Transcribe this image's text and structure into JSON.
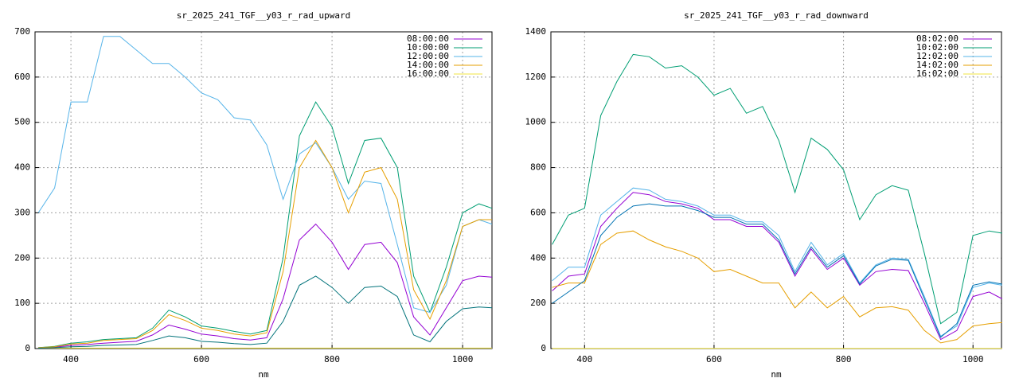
{
  "chart_data": [
    {
      "type": "line",
      "title": "sr_2025_241_TGF__y03_r_rad_upward",
      "xlabel": "nm",
      "x": [
        350,
        375,
        400,
        425,
        450,
        475,
        500,
        525,
        550,
        575,
        600,
        625,
        650,
        675,
        700,
        725,
        750,
        775,
        800,
        825,
        850,
        875,
        900,
        925,
        950,
        975,
        1000,
        1025,
        1045
      ],
      "xlim": [
        345,
        1045
      ],
      "ylim": [
        0,
        700
      ],
      "xticks": [
        400,
        600,
        800,
        1000
      ],
      "yticks": [
        0,
        100,
        200,
        300,
        400,
        500,
        600,
        700
      ],
      "grid": true,
      "legend": "top-right",
      "series": [
        {
          "name": "08:00:00",
          "color": "#9400d3",
          "values": [
            2,
            3,
            7,
            9,
            12,
            14,
            16,
            30,
            52,
            43,
            32,
            28,
            22,
            19,
            24,
            110,
            240,
            275,
            235,
            175,
            230,
            235,
            190,
            70,
            30,
            90,
            150,
            160,
            158
          ]
        },
        {
          "name": "10:00:00",
          "color": "#009e73",
          "values": [
            2,
            5,
            12,
            15,
            20,
            22,
            24,
            45,
            85,
            70,
            50,
            45,
            38,
            32,
            40,
            200,
            470,
            545,
            490,
            365,
            460,
            465,
            400,
            160,
            80,
            180,
            300,
            320,
            310
          ]
        },
        {
          "name": "12:00:00",
          "color": "#56b4e9",
          "values": [
            300,
            355,
            545,
            545,
            690,
            690,
            660,
            630,
            630,
            600,
            565,
            550,
            510,
            505,
            450,
            330,
            430,
            455,
            400,
            330,
            370,
            365,
            230,
            90,
            80,
            140,
            270,
            285,
            275
          ]
        },
        {
          "name": "14:00:00",
          "color": "#e69f00",
          "values": [
            2,
            4,
            10,
            12,
            18,
            20,
            22,
            40,
            75,
            62,
            45,
            40,
            32,
            28,
            35,
            170,
            400,
            460,
            400,
            300,
            390,
            400,
            330,
            130,
            65,
            150,
            270,
            285,
            285
          ]
        },
        {
          "name": "16:00:00",
          "color": "#f0e442",
          "values": [
            1,
            1,
            1,
            1,
            1,
            1,
            1,
            1,
            1,
            1,
            1,
            1,
            1,
            1,
            1,
            1,
            1,
            1,
            1,
            1,
            1,
            1,
            1,
            1,
            1,
            1,
            1,
            1,
            1
          ]
        },
        {
          "color": "#00727a",
          "values": [
            1,
            2,
            4,
            5,
            7,
            8,
            9,
            18,
            28,
            24,
            16,
            14,
            11,
            9,
            12,
            60,
            140,
            160,
            135,
            100,
            135,
            138,
            115,
            30,
            15,
            60,
            88,
            92,
            90
          ]
        }
      ]
    },
    {
      "type": "line",
      "title": "sr_2025_241_TGF__y03_r_rad_downward",
      "xlabel": "nm",
      "x": [
        350,
        375,
        400,
        425,
        450,
        475,
        500,
        525,
        550,
        575,
        600,
        625,
        650,
        675,
        700,
        725,
        750,
        775,
        800,
        825,
        850,
        875,
        900,
        925,
        950,
        975,
        1000,
        1025,
        1045
      ],
      "xlim": [
        348,
        1044
      ],
      "ylim": [
        0,
        1400
      ],
      "xticks": [
        400,
        600,
        800,
        1000
      ],
      "yticks": [
        0,
        200,
        400,
        600,
        800,
        1000,
        1200,
        1400
      ],
      "grid": true,
      "legend": "top-right",
      "series": [
        {
          "name": "08:02:00",
          "color": "#9400d3",
          "values": [
            255,
            320,
            330,
            540,
            620,
            690,
            680,
            650,
            640,
            620,
            570,
            570,
            540,
            540,
            470,
            320,
            440,
            350,
            400,
            280,
            340,
            350,
            345,
            200,
            40,
            80,
            230,
            250,
            220
          ]
        },
        {
          "name": "10:02:00",
          "color": "#009e73",
          "values": [
            460,
            590,
            620,
            1030,
            1180,
            1300,
            1290,
            1240,
            1250,
            1200,
            1120,
            1150,
            1040,
            1070,
            920,
            690,
            930,
            880,
            790,
            570,
            680,
            720,
            700,
            420,
            110,
            160,
            500,
            520,
            510
          ]
        },
        {
          "name": "12:02:00",
          "color": "#56b4e9",
          "values": [
            300,
            360,
            360,
            590,
            650,
            710,
            700,
            660,
            650,
            630,
            590,
            590,
            560,
            560,
            500,
            340,
            470,
            370,
            420,
            290,
            370,
            400,
            395,
            230,
            55,
            100,
            270,
            290,
            280
          ]
        },
        {
          "name": "14:02:00",
          "color": "#e69f00",
          "values": [
            270,
            290,
            290,
            460,
            510,
            520,
            480,
            450,
            430,
            400,
            340,
            350,
            320,
            290,
            290,
            180,
            250,
            180,
            230,
            140,
            180,
            185,
            170,
            80,
            25,
            40,
            100,
            110,
            115
          ]
        },
        {
          "name": "16:02:00",
          "color": "#f0e442",
          "values": [
            1,
            1,
            1,
            1,
            1,
            1,
            1,
            1,
            1,
            1,
            1,
            1,
            1,
            1,
            1,
            1,
            1,
            1,
            1,
            1,
            1,
            1,
            1,
            1,
            1,
            1,
            1,
            1,
            1
          ]
        },
        {
          "color": "#0072b2",
          "values": [
            200,
            250,
            300,
            500,
            580,
            630,
            640,
            630,
            630,
            610,
            580,
            580,
            550,
            550,
            480,
            330,
            450,
            360,
            410,
            285,
            365,
            395,
            390,
            220,
            50,
            110,
            280,
            295,
            285
          ]
        }
      ]
    }
  ]
}
